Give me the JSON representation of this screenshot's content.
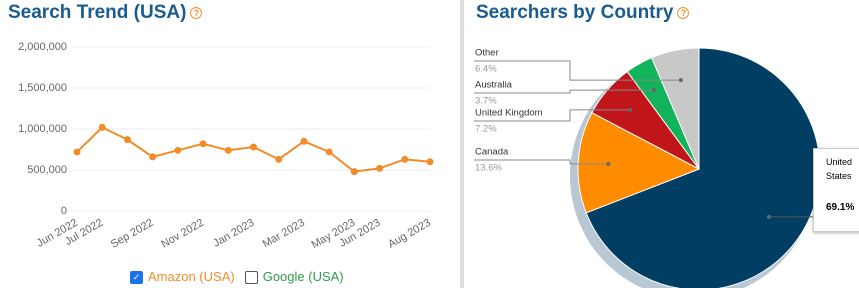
{
  "chart_data": [
    {
      "type": "line",
      "title": "Search Trend (USA)",
      "categories": [
        "Jun 2022",
        "Jul 2022",
        null,
        "Sep 2022",
        null,
        "Nov 2022",
        null,
        "Jan 2023",
        null,
        "Mar 2023",
        null,
        "May 2023",
        "Jun 2023",
        null,
        "Aug 2023"
      ],
      "series": [
        {
          "name": "Amazon (USA)",
          "color": "#f28c28",
          "visible": true,
          "values": [
            720000,
            1020000,
            870000,
            660000,
            740000,
            820000,
            740000,
            780000,
            630000,
            850000,
            720000,
            480000,
            520000,
            630000,
            600000
          ]
        },
        {
          "name": "Google (USA)",
          "color": "#2e9e4a",
          "visible": false,
          "values": [
            null,
            null,
            null,
            null,
            null,
            null,
            null,
            null,
            null,
            null,
            null,
            null,
            null,
            null,
            null
          ]
        }
      ],
      "ylim": [
        0,
        2000000
      ],
      "yticks": [
        0,
        {
          "value": 500000,
          "label": "500,000"
        },
        {
          "value": 1000000,
          "label": "1,000,000"
        },
        {
          "value": 1500000,
          "label": "1,500,000"
        },
        {
          "value": 2000000,
          "label": "2,000,000"
        }
      ],
      "grid": true
    },
    {
      "type": "pie",
      "title": "Searchers by Country",
      "categories": [
        "United States",
        "Canada",
        "United Kingdom",
        "Australia",
        "Other"
      ],
      "values": [
        69.1,
        13.6,
        7.2,
        3.7,
        6.4
      ],
      "value_labels": [
        "69.1%",
        "13.6%",
        "7.2%",
        "3.7%",
        "6.4%"
      ],
      "colors": [
        "#003f63",
        "#ff8c00",
        "#c0161b",
        "#12b35a",
        "#c8c8c8"
      ]
    }
  ]
}
